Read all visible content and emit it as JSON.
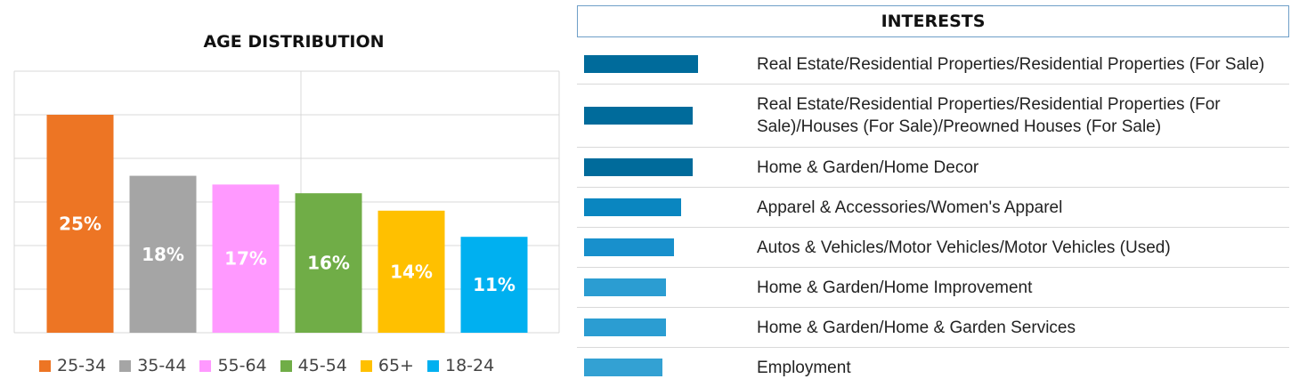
{
  "age_chart": {
    "title": "AGE DISTRIBUTION",
    "gridline_color": "#d9d9d9",
    "bar_label_color": "#ffffff"
  },
  "chart_data": [
    {
      "type": "bar",
      "title": "AGE DISTRIBUTION",
      "categories": [
        "25-34",
        "35-44",
        "55-64",
        "45-54",
        "65+",
        "18-24"
      ],
      "values": [
        25,
        18,
        17,
        16,
        14,
        11
      ],
      "data_labels": [
        "25%",
        "18%",
        "17%",
        "16%",
        "14%",
        "11%"
      ],
      "colors": [
        "#ed7524",
        "#a5a5a5",
        "#ff99ff",
        "#70ad47",
        "#ffc000",
        "#00b0f0"
      ],
      "ylim": [
        0,
        30
      ],
      "grid": true,
      "legend": "bottom",
      "xlabel": "",
      "ylabel": ""
    },
    {
      "type": "bar",
      "orientation": "horizontal",
      "title": "INTERESTS",
      "categories": [
        "Real Estate/Residential Properties/Residential Properties (For Sale)",
        "Real Estate/Residential Properties/Residential Properties (For Sale)/Houses (For Sale)/Preowned Houses (For Sale)",
        "Home & Garden/Home Decor",
        "Apparel & Accessories/Women's Apparel",
        "Autos & Vehicles/Motor Vehicles/Motor Vehicles (Used)",
        "Home & Garden/Home Improvement",
        "Home & Garden/Home & Garden Services",
        "Employment"
      ],
      "values": [
        1.0,
        0.95,
        0.95,
        0.85,
        0.79,
        0.72,
        0.72,
        0.69
      ],
      "colors": [
        "#006b9b",
        "#006b9b",
        "#006b9b",
        "#0a86c0",
        "#1890cc",
        "#2b9dd2",
        "#2b9dd2",
        "#33a1d3"
      ],
      "xlim": [
        0,
        1
      ]
    }
  ],
  "interests": {
    "header": "INTERESTS"
  }
}
